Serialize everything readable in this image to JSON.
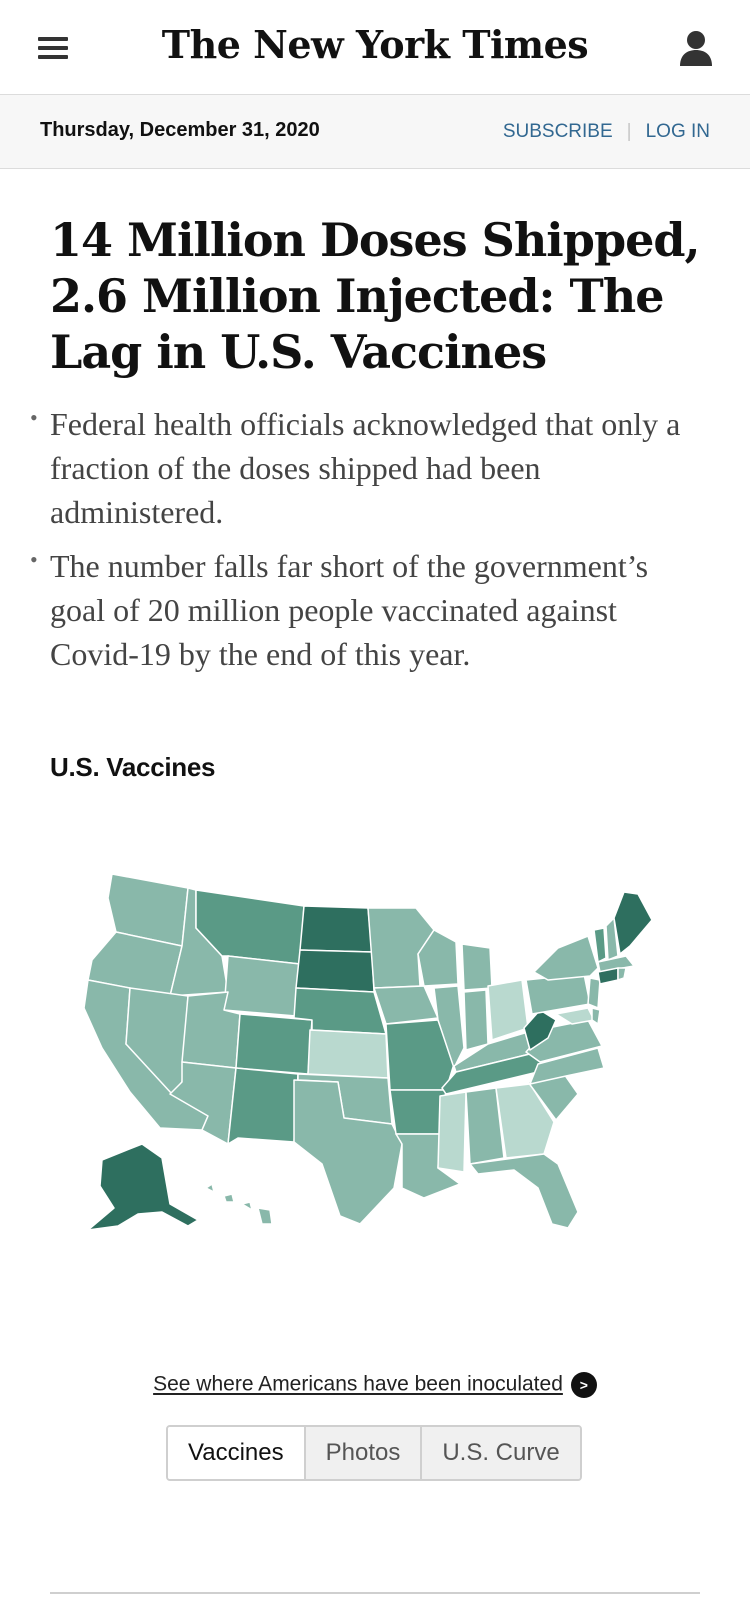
{
  "header": {
    "logo": "The New York Times",
    "menu_icon": "hamburger-menu-icon",
    "user_icon": "user-account-icon"
  },
  "datebar": {
    "date": "Thursday, December 31, 2020",
    "subscribe": "SUBSCRIBE",
    "separator": "|",
    "login": "LOG IN"
  },
  "article": {
    "headline": "14 Million Doses Shipped, 2.6 Million Injected: The Lag in U.S. Vaccines",
    "summary": [
      "Federal health officials acknowledged that only a fraction of the doses shipped had been administered.",
      "The number falls far short of the government’s goal of 20 million people vaccinated against Covid-19 by the end of this year."
    ],
    "section_label": "U.S. Vaccines"
  },
  "map": {
    "link_text": "See where Americans have been inoculated",
    "link_arrow": ">",
    "colors": {
      "light": "#b9d9cf",
      "medium": "#89b8aa",
      "dark": "#5a9a86",
      "darkest": "#2e6f5f",
      "border": "#ffffff"
    }
  },
  "tabs": [
    {
      "label": "Vaccines",
      "selected": true
    },
    {
      "label": "Photos",
      "selected": false
    },
    {
      "label": "U.S. Curve",
      "selected": false
    }
  ]
}
